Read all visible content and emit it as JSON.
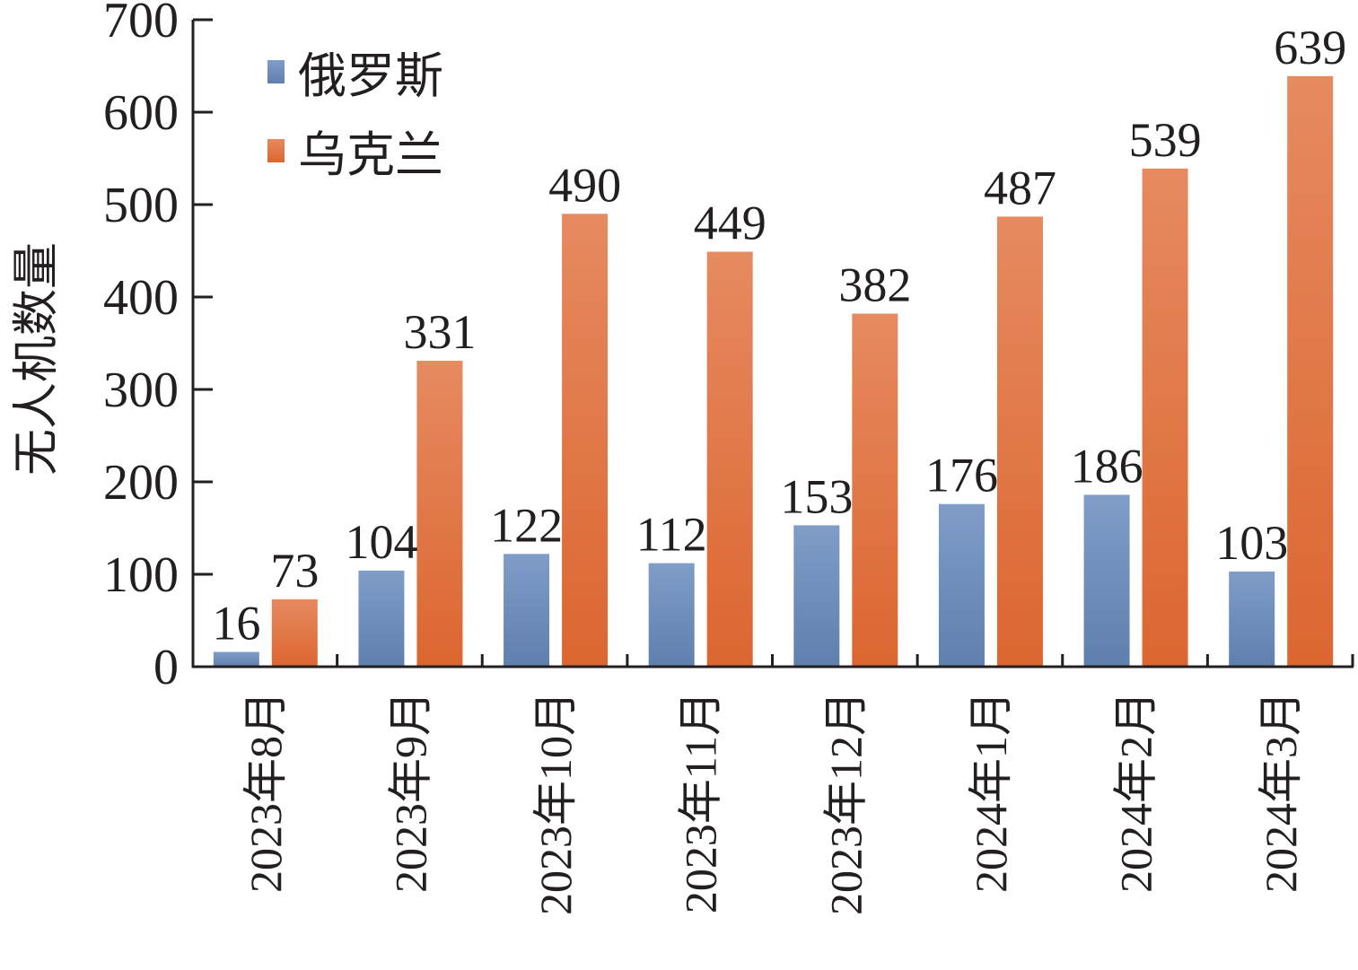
{
  "chart_data": {
    "type": "bar",
    "title": "",
    "ylabel": "无人机数量",
    "xlabel": "",
    "ylim": [
      0,
      700
    ],
    "yticks": [
      0,
      100,
      200,
      300,
      400,
      500,
      600,
      700
    ],
    "grid": false,
    "legend_position": "top-left",
    "categories": [
      "2023年8月",
      "2023年9月",
      "2023年10月",
      "2023年11月",
      "2023年12月",
      "2024年1月",
      "2024年2月",
      "2024年3月"
    ],
    "series": [
      {
        "name": "俄罗斯",
        "color": "#6f8fbc",
        "values": [
          16,
          104,
          122,
          112,
          153,
          176,
          186,
          103
        ]
      },
      {
        "name": "乌克兰",
        "color": "#e2703c",
        "values": [
          73,
          331,
          490,
          449,
          382,
          487,
          539,
          639
        ]
      }
    ]
  }
}
